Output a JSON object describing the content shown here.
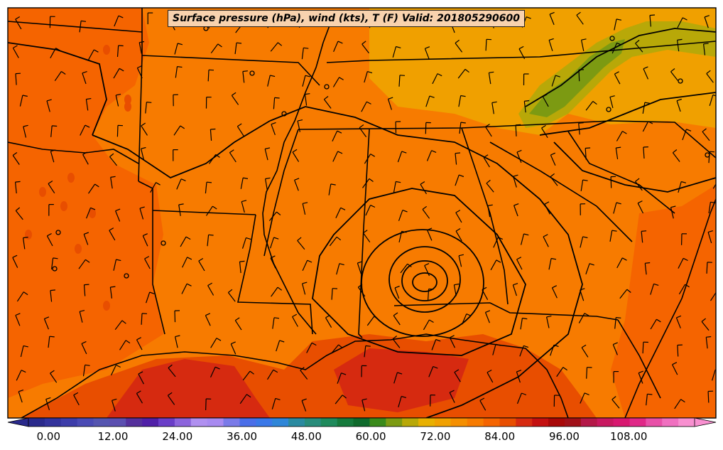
{
  "title": "Surface pressure (hPa), wind (kts), T (F) Valid: 201805290600",
  "colorbar": {
    "min": -4,
    "max": 120,
    "step": 4,
    "tick_labels": [
      "0.00",
      "12.00",
      "24.00",
      "36.00",
      "48.00",
      "60.00",
      "72.00",
      "84.00",
      "96.00",
      "108.00"
    ],
    "colors": [
      "#2a2a8c",
      "#33339c",
      "#3d3daa",
      "#4a4ab4",
      "#5555b0",
      "#5b4fb0",
      "#55309c",
      "#5020a8",
      "#6a3ec8",
      "#8c64dc",
      "#b090f0",
      "#a88af0",
      "#7a7ae8",
      "#4a6ee8",
      "#3a78e8",
      "#2f86d8",
      "#2a8aa0",
      "#288c7a",
      "#1f8a5c",
      "#167a3c",
      "#0f6a2c",
      "#3a8a1a",
      "#7c9a12",
      "#b8a808",
      "#e8b000",
      "#f0a000",
      "#f58f00",
      "#f77b00",
      "#f56400",
      "#e84e00",
      "#d62a10",
      "#c41010",
      "#a80808",
      "#a01018",
      "#b41848",
      "#c81860",
      "#d81870",
      "#e02888",
      "#e850a8",
      "#f070c0",
      "#f890d0"
    ]
  },
  "map_layers": {
    "background_fill": "#f77b00",
    "regions": [
      {
        "name": "west-hot",
        "color": "#f56400"
      },
      {
        "name": "gulf-warm",
        "color": "#e84e00"
      },
      {
        "name": "gulf-warmest",
        "color": "#d62a10"
      },
      {
        "name": "appalachian-cool",
        "color": "#f0a000"
      },
      {
        "name": "appalachian-cold",
        "color": "#b8a808"
      },
      {
        "name": "appalachian-coldest",
        "color": "#7c9a12"
      }
    ],
    "state_line_color": "#000000",
    "isobar_color": "#000000",
    "barb_color": "#000000"
  }
}
